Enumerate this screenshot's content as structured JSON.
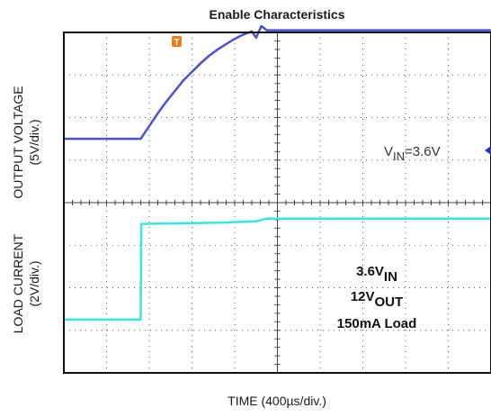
{
  "chart_data": {
    "type": "line",
    "title": "Enable Characteristics",
    "xlabel": "TIME (400µs/div.)",
    "grid": true,
    "xlim": [
      0,
      4000
    ],
    "x_unit": "µs",
    "channels": [
      {
        "ylabel": "OUTPUT VOLTAGE",
        "yscale": "(5V/div.)",
        "ylim": [
          -6,
          10
        ],
        "color": "#4a4fd8",
        "x": [
          0,
          400,
          720,
          800,
          880,
          960,
          1040,
          1120,
          1200,
          1280,
          1360,
          1440,
          1520,
          1600,
          1680,
          1760,
          1800,
          1850,
          1900,
          2000,
          2400,
          2800,
          3200,
          3600,
          4000
        ],
        "y": [
          0.0,
          0.0,
          0.0,
          1.2,
          2.4,
          3.5,
          4.5,
          5.5,
          6.3,
          7.1,
          7.8,
          8.4,
          8.9,
          9.4,
          9.8,
          10.1,
          9.5,
          10.6,
          10.2,
          10.2,
          10.2,
          10.2,
          10.2,
          10.2,
          10.2
        ]
      },
      {
        "ylabel": "LOAD CURRENT",
        "yscale": "(2V/div.)",
        "ylim": [
          -2,
          4.4
        ],
        "color": "#36e6e6",
        "x": [
          0,
          720,
          725,
          1500,
          1800,
          1900,
          2400,
          2800,
          3200,
          3600,
          4000
        ],
        "y": [
          0.0,
          0.0,
          3.6,
          3.65,
          3.7,
          3.8,
          3.8,
          3.8,
          3.8,
          3.8,
          3.8
        ]
      }
    ],
    "annotations": {
      "vin": {
        "base": "V",
        "sub": "IN",
        "rest": "=3.6V"
      },
      "lines": [
        {
          "base": "3.6V",
          "sub": "IN"
        },
        {
          "base": "12V",
          "sub": "OUT"
        },
        {
          "base": "150mA Load",
          "sub": ""
        }
      ],
      "trigger_marker": "T"
    }
  }
}
